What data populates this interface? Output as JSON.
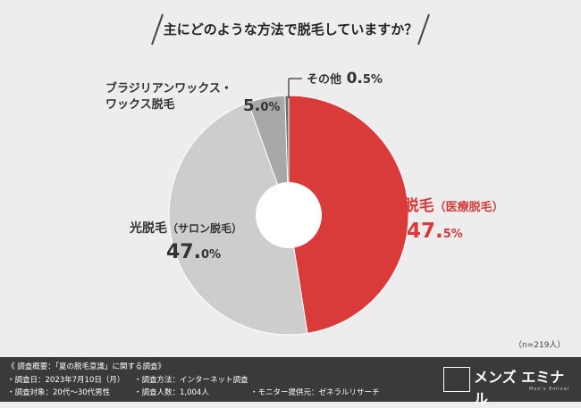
{
  "title": "主にどのような方法で脱毛していますか？",
  "chart_data": {
    "type": "pie",
    "title": "主にどのような方法で脱毛していますか？",
    "slices": [
      {
        "label": "レーザー脱毛（医療脱毛）",
        "value": 47.5,
        "display_int": "47.",
        "display_dec": "5%",
        "color": "#d93a3a"
      },
      {
        "label": "光脱毛（サロン脱毛）",
        "value": 47.0,
        "display_int": "47.",
        "display_dec": "0%",
        "color": "#cdcdcd"
      },
      {
        "label": "ブラジリアンワックス・ワックス脱毛",
        "value": 5.0,
        "display_int": "5.",
        "display_dec": "0%",
        "color": "#a8a8a8"
      },
      {
        "label": "その他",
        "value": 0.5,
        "display_int": "0.",
        "display_dec": "5%",
        "color": "#6e6e6e"
      }
    ]
  },
  "labels": {
    "laser_main": "レーザー脱毛",
    "laser_sub": "（医療脱毛）",
    "light_main": "光脱毛",
    "light_sub": "（サロン脱毛）",
    "wax_line1": "ブラジリアンワックス・",
    "wax_line2": "ワックス脱毛",
    "other": "その他"
  },
  "sample_size": "（n=219人）",
  "footer": {
    "overview": "《 調査概要：「夏の脱毛意識」に関する調査》",
    "date": "・調査日：2023年7月10日（月）",
    "method": "・調査方法：インターネット調査",
    "target": "・調査対象：20代〜30代男性",
    "count": "・調査人数：1,004人",
    "monitor": "・モニター提供元：ゼネラルリサーチ",
    "brand_name": "メンズ エミナル",
    "brand_sub": "Men's Eminal"
  }
}
